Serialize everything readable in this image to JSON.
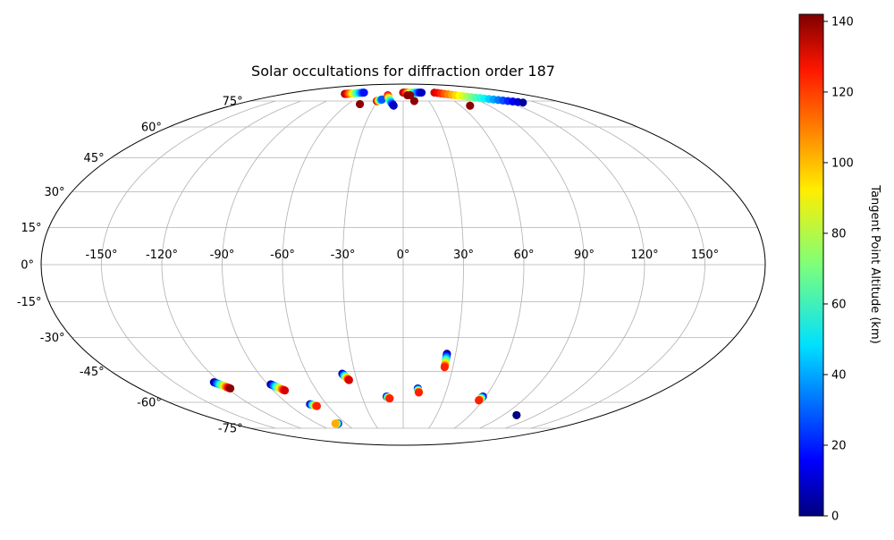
{
  "chart_data": {
    "type": "scatter",
    "projection": "mollweide",
    "title": "Solar occultations for diffraction order 187",
    "grid": true,
    "lon_ticks": [
      {
        "value": -150,
        "label": "-150°"
      },
      {
        "value": -120,
        "label": "-120°"
      },
      {
        "value": -90,
        "label": "-90°"
      },
      {
        "value": -60,
        "label": "-60°"
      },
      {
        "value": -30,
        "label": "-30°"
      },
      {
        "value": 0,
        "label": "0°"
      },
      {
        "value": 30,
        "label": "30°"
      },
      {
        "value": 60,
        "label": "60°"
      },
      {
        "value": 90,
        "label": "90°"
      },
      {
        "value": 120,
        "label": "120°"
      },
      {
        "value": 150,
        "label": "150°"
      }
    ],
    "lat_ticks": [
      {
        "value": 75,
        "label": "75°"
      },
      {
        "value": 60,
        "label": "60°"
      },
      {
        "value": 45,
        "label": "45°"
      },
      {
        "value": 30,
        "label": "30°"
      },
      {
        "value": 15,
        "label": "15°"
      },
      {
        "value": 0,
        "label": "0°"
      },
      {
        "value": -15,
        "label": "-15°"
      },
      {
        "value": -30,
        "label": "-30°"
      },
      {
        "value": -45,
        "label": "-45°"
      },
      {
        "value": -60,
        "label": "-60°"
      },
      {
        "value": -75,
        "label": "-75°"
      }
    ],
    "colorbar": {
      "label": "Tangent Point Altitude (km)",
      "colormap": "jet",
      "min": 0,
      "max": 142,
      "ticks": [
        {
          "value": 0,
          "label": "0"
        },
        {
          "value": 20,
          "label": "20"
        },
        {
          "value": 40,
          "label": "40"
        },
        {
          "value": 60,
          "label": "60"
        },
        {
          "value": 80,
          "label": "80"
        },
        {
          "value": 100,
          "label": "100"
        },
        {
          "value": 120,
          "label": "120"
        },
        {
          "value": 140,
          "label": "140"
        }
      ]
    },
    "occultations": [
      {
        "lon_start": -124,
        "lat_start": -50,
        "alt_start": 0,
        "lon_end": -118,
        "lat_end": -53,
        "alt_end": 140
      },
      {
        "lon_start": -88,
        "lat_start": -51,
        "alt_start": 0,
        "lon_end": -82,
        "lat_end": -54,
        "alt_end": 130
      },
      {
        "lon_start": -73,
        "lat_start": -61,
        "alt_start": 0,
        "lon_end": -69,
        "lat_end": -62,
        "alt_end": 120
      },
      {
        "lon_start": -68,
        "lat_start": -72,
        "alt_start": 0,
        "lon_end": -71,
        "lat_end": -72,
        "alt_end": 100
      },
      {
        "lon_start": -38,
        "lat_start": -46,
        "alt_start": 0,
        "lon_end": -35,
        "lat_end": -49,
        "alt_end": 130
      },
      {
        "lon_start": -12,
        "lat_start": -57,
        "alt_start": 0,
        "lon_end": -10,
        "lat_end": -58,
        "alt_end": 120
      },
      {
        "lon_start": 10,
        "lat_start": -53,
        "alt_start": 0,
        "lon_end": 11,
        "lat_end": -55,
        "alt_end": 120
      },
      {
        "lon_start": 25,
        "lat_start": -37,
        "alt_start": 0,
        "lon_end": 25,
        "lat_end": -43,
        "alt_end": 120
      },
      {
        "lon_start": 58,
        "lat_start": -57,
        "alt_start": 0,
        "lon_end": 57,
        "lat_end": -59,
        "alt_end": 120
      },
      {
        "lon_start": 102,
        "lat_start": -67,
        "alt_start": 0,
        "lon_end": 102,
        "lat_end": -67,
        "alt_end": 0
      },
      {
        "lon_start": -89,
        "lat_start": 80,
        "alt_start": 140,
        "lon_end": -64,
        "lat_end": 81,
        "alt_end": 20
      },
      {
        "lon_start": -47,
        "lat_start": 73,
        "alt_start": 140,
        "lon_end": -47,
        "lat_end": 73,
        "alt_end": 140
      },
      {
        "lon_start": -31,
        "lat_start": 75,
        "alt_start": 140,
        "lon_end": -26,
        "lat_end": 76,
        "alt_end": 30
      },
      {
        "lon_start": -22,
        "lat_start": 79,
        "alt_start": 130,
        "lon_end": -10,
        "lat_end": 72,
        "alt_end": 10
      },
      {
        "lon_start": 0,
        "lat_start": 81,
        "alt_start": 140,
        "lon_end": 30,
        "lat_end": 81,
        "alt_end": 10
      },
      {
        "lon_start": 6,
        "lat_start": 79,
        "alt_start": 140,
        "lon_end": 10,
        "lat_end": 79,
        "alt_end": 140
      },
      {
        "lon_start": 13,
        "lat_start": 75,
        "alt_start": 140,
        "lon_end": 13,
        "lat_end": 75,
        "alt_end": 140
      },
      {
        "lon_start": 51,
        "lat_start": 81,
        "alt_start": 130,
        "lon_end": 135,
        "lat_end": 74,
        "alt_end": 5
      },
      {
        "lon_start": 70,
        "lat_start": 72,
        "alt_start": 140,
        "lon_end": 70,
        "lat_end": 72,
        "alt_end": 140
      }
    ]
  }
}
